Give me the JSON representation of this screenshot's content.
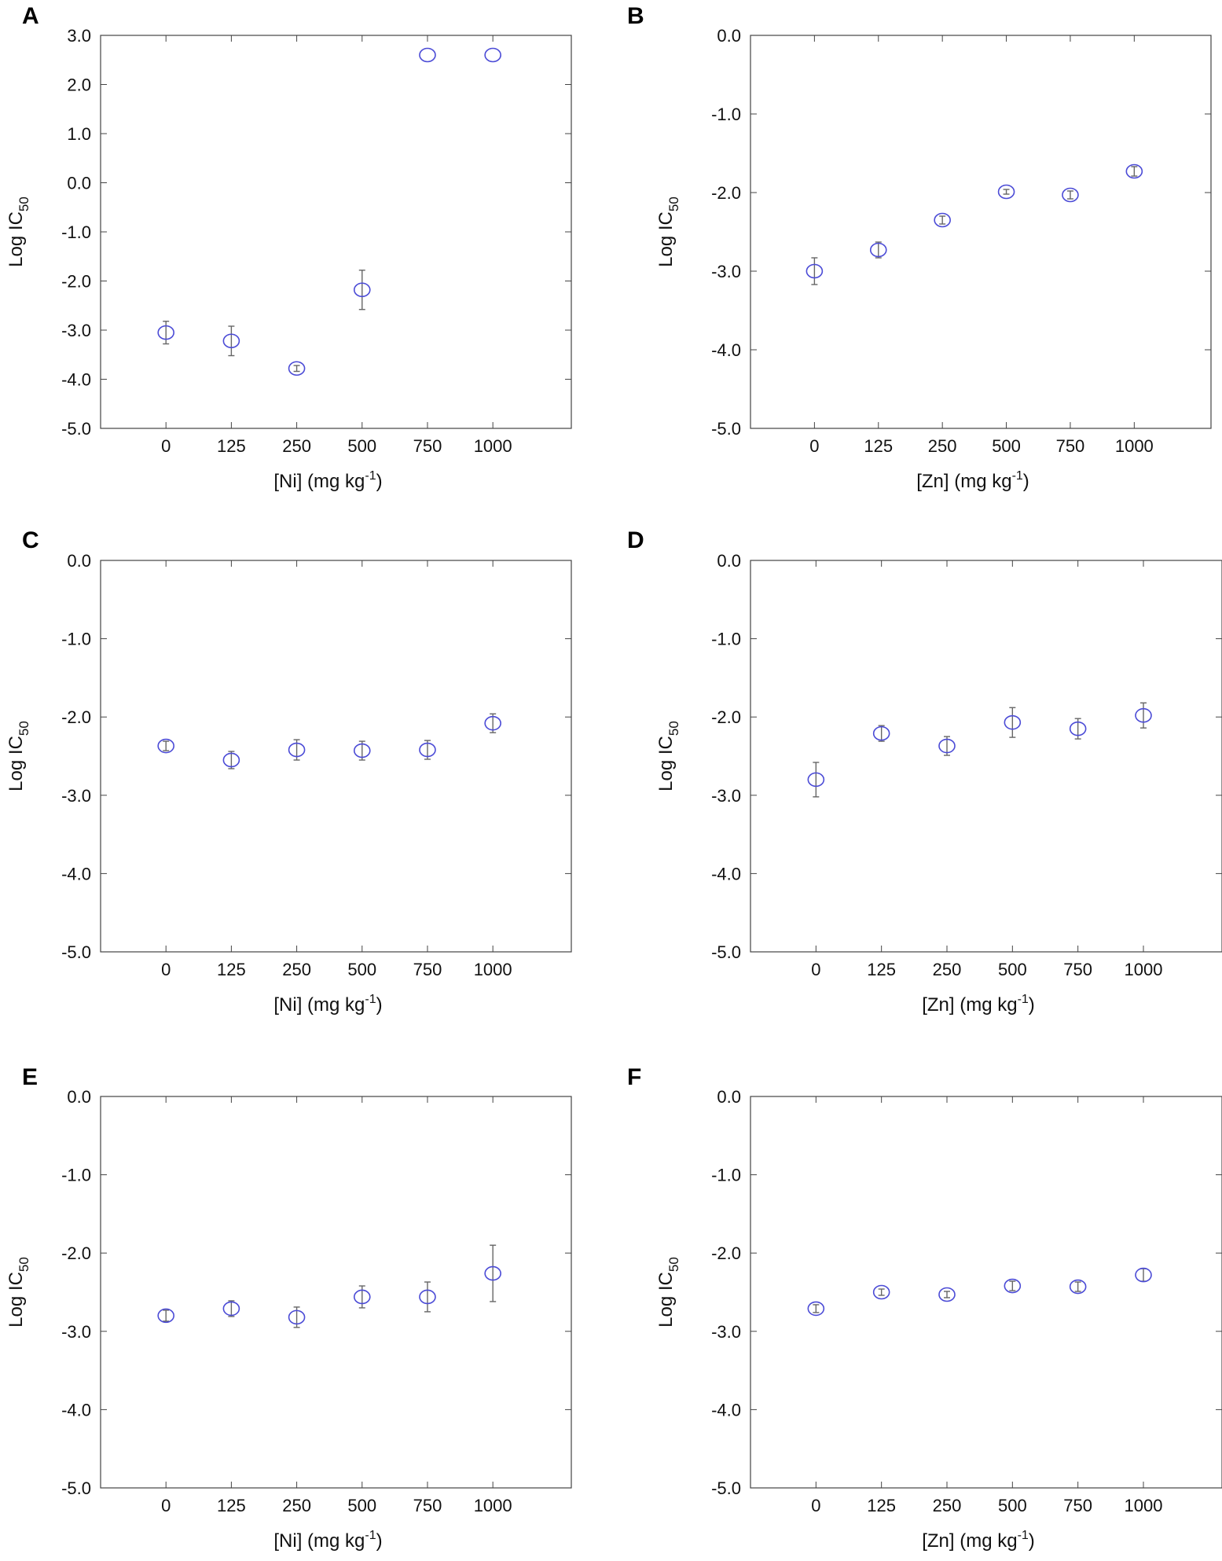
{
  "chart_data": [
    {
      "panel": "A",
      "type": "scatter",
      "xlabel_prefix": "[Ni] (mg kg",
      "xlabel_sup": "-1",
      "xlabel_suffix": ")",
      "ylabel_main": "Log IC",
      "ylabel_sub": "50",
      "categories": [
        "0",
        "125",
        "250",
        "500",
        "750",
        "1000"
      ],
      "values": [
        -3.05,
        -3.22,
        -3.78,
        -2.18,
        2.6,
        2.6
      ],
      "errors": [
        0.23,
        0.3,
        0.06,
        0.4,
        0,
        0
      ],
      "yticks": [
        "3.0",
        "2.0",
        "1.0",
        "0.0",
        "-1.0",
        "-2.0",
        "-3.0",
        "-4.0",
        "-5.0"
      ],
      "ylim": [
        -5,
        3
      ]
    },
    {
      "panel": "B",
      "type": "scatter",
      "xlabel_prefix": "[Zn] (mg kg",
      "xlabel_sup": "-1",
      "xlabel_suffix": ")",
      "ylabel_main": "Log IC",
      "ylabel_sub": "50",
      "categories": [
        "0",
        "125",
        "250",
        "500",
        "750",
        "1000"
      ],
      "values": [
        -3.0,
        -2.73,
        -2.35,
        -1.99,
        -2.03,
        -1.73
      ],
      "errors": [
        0.17,
        0.1,
        0.05,
        0.03,
        0.05,
        0.06
      ],
      "yticks": [
        "0.0",
        "-1.0",
        "-2.0",
        "-3.0",
        "-4.0",
        "-5.0"
      ],
      "ylim": [
        -5,
        0
      ]
    },
    {
      "panel": "C",
      "type": "scatter",
      "xlabel_prefix": "[Ni] (mg kg",
      "xlabel_sup": "-1",
      "xlabel_suffix": ")",
      "ylabel_main": "Log IC",
      "ylabel_sub": "50",
      "categories": [
        "0",
        "125",
        "250",
        "500",
        "750",
        "1000"
      ],
      "values": [
        -2.37,
        -2.55,
        -2.42,
        -2.43,
        -2.42,
        -2.08
      ],
      "errors": [
        0.06,
        0.11,
        0.13,
        0.12,
        0.12,
        0.12
      ],
      "yticks": [
        "0.0",
        "-1.0",
        "-2.0",
        "-3.0",
        "-4.0",
        "-5.0"
      ],
      "ylim": [
        -5,
        0
      ]
    },
    {
      "panel": "D",
      "type": "scatter",
      "xlabel_prefix": "[Zn] (mg kg",
      "xlabel_sup": "-1",
      "xlabel_suffix": ")",
      "ylabel_main": "Log IC",
      "ylabel_sub": "50",
      "categories": [
        "0",
        "125",
        "250",
        "500",
        "750",
        "1000"
      ],
      "values": [
        -2.8,
        -2.21,
        -2.37,
        -2.07,
        -2.15,
        -1.98
      ],
      "errors": [
        0.22,
        0.1,
        0.12,
        0.19,
        0.13,
        0.16
      ],
      "yticks": [
        "0.0",
        "-1.0",
        "-2.0",
        "-3.0",
        "-4.0",
        "-5.0"
      ],
      "ylim": [
        -5,
        0
      ]
    },
    {
      "panel": "E",
      "type": "scatter",
      "xlabel_prefix": "[Ni] (mg kg",
      "xlabel_sup": "-1",
      "xlabel_suffix": ")",
      "ylabel_main": "Log IC",
      "ylabel_sub": "50",
      "categories": [
        "0",
        "125",
        "250",
        "500",
        "750",
        "1000"
      ],
      "values": [
        -2.8,
        -2.71,
        -2.82,
        -2.56,
        -2.56,
        -2.26
      ],
      "errors": [
        0.07,
        0.1,
        0.13,
        0.14,
        0.19,
        0.36
      ],
      "yticks": [
        "0.0",
        "-1.0",
        "-2.0",
        "-3.0",
        "-4.0",
        "-5.0"
      ],
      "ylim": [
        -5,
        0
      ]
    },
    {
      "panel": "F",
      "type": "scatter",
      "xlabel_prefix": "[Zn] (mg kg",
      "xlabel_sup": "-1",
      "xlabel_suffix": ")",
      "ylabel_main": "Log IC",
      "ylabel_sub": "50",
      "categories": [
        "0",
        "125",
        "250",
        "500",
        "750",
        "1000"
      ],
      "values": [
        -2.71,
        -2.5,
        -2.53,
        -2.42,
        -2.43,
        -2.28
      ],
      "errors": [
        0.05,
        0.04,
        0.04,
        0.06,
        0.06,
        0.08
      ],
      "yticks": [
        "0.0",
        "-1.0",
        "-2.0",
        "-3.0",
        "-4.0",
        "-5.0"
      ],
      "ylim": [
        -5,
        0
      ]
    }
  ]
}
